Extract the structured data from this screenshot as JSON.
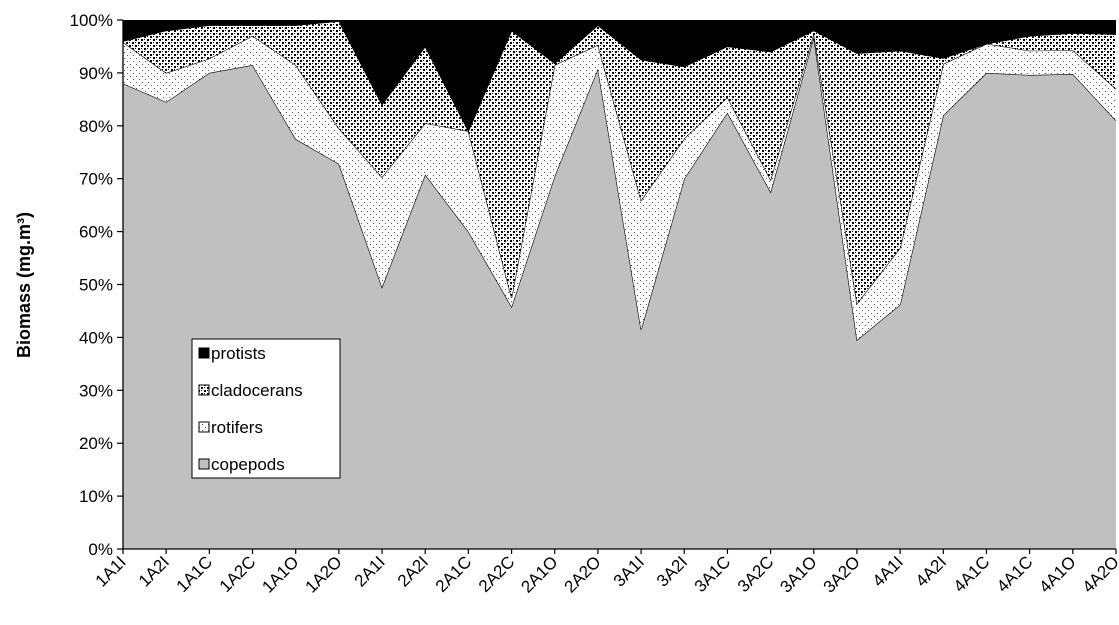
{
  "chart_data": {
    "type": "area",
    "stacked": true,
    "percent": true,
    "title": "",
    "xlabel": "",
    "ylabel": "Biomass (mg.m³)",
    "ylim": [
      0,
      100
    ],
    "ytick_labels": [
      "0%",
      "10%",
      "20%",
      "30%",
      "40%",
      "50%",
      "60%",
      "70%",
      "80%",
      "90%",
      "100%"
    ],
    "grid": false,
    "legend_position": "lower-left inside plot",
    "categories": [
      "1A1I",
      "1A2I",
      "1A1C",
      "1A2C",
      "1A1O",
      "1A2O",
      "2A1I",
      "2A2I",
      "2A1C",
      "2A2C",
      "2A1O",
      "2A2O",
      "3A1I",
      "3A2I",
      "3A1C",
      "3A2C",
      "3A1O",
      "3A2O",
      "4A1I",
      "4A2I",
      "4A1C",
      "4A1C",
      "4A1O",
      "4A2O"
    ],
    "series": [
      {
        "name": "copepods",
        "fill": "solid",
        "color": "#c0c0c0",
        "values": [
          88,
          84.5,
          90,
          91.5,
          77.5,
          72.8,
          49.5,
          70.8,
          60,
          45.8,
          70.5,
          90.8,
          41.5,
          70,
          82.5,
          67.5,
          96.8,
          39.5,
          46.2,
          82,
          90,
          89.6,
          89.8,
          81
        ]
      },
      {
        "name": "rotifers",
        "fill": "pattern-dots-sparse",
        "color": "#ffffff",
        "values": [
          7.8,
          5.5,
          2.7,
          5.5,
          14,
          6.7,
          20.8,
          9.7,
          19,
          1.7,
          21,
          4.5,
          24.4,
          7.6,
          2.9,
          2.3,
          0.7,
          6.9,
          10.7,
          9.7,
          5.5,
          4.6,
          4.5,
          6
        ]
      },
      {
        "name": "cladocerans",
        "fill": "pattern-dots-dense",
        "color": "#000000",
        "values": [
          0.2,
          8,
          6.3,
          2,
          7.5,
          20.3,
          13.7,
          14.5,
          0,
          50.5,
          0.3,
          3.7,
          26.6,
          13.6,
          9.6,
          24.2,
          0.5,
          47.3,
          37.3,
          1.1,
          0,
          2.8,
          3.2,
          10.3
        ]
      },
      {
        "name": "protists",
        "fill": "solid",
        "color": "#000000",
        "values": [
          4,
          2,
          1,
          1,
          1,
          0.2,
          16,
          5,
          21,
          2,
          8.2,
          1,
          7.5,
          8.8,
          5,
          6,
          2,
          6.3,
          5.8,
          7.2,
          4.5,
          3,
          2.5,
          2.7
        ]
      }
    ]
  }
}
